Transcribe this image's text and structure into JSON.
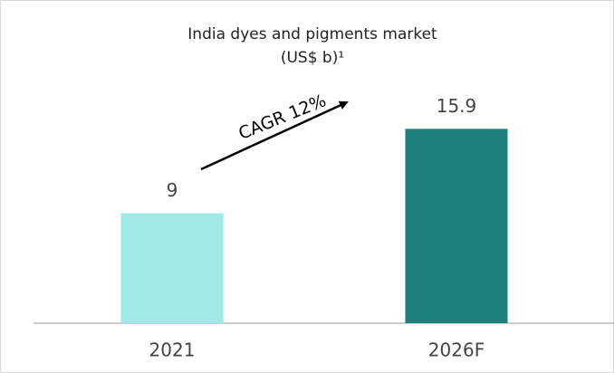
{
  "chart_data": {
    "type": "bar",
    "title": "India dyes and pigments market",
    "subtitle": "(US$ b)¹",
    "categories": [
      "2021",
      "2026F"
    ],
    "values": [
      9,
      15.9
    ],
    "colors": [
      "#a0e8e6",
      "#1e7f7c"
    ],
    "ylim": [
      0,
      20
    ],
    "annotation": "CAGR 12%"
  }
}
